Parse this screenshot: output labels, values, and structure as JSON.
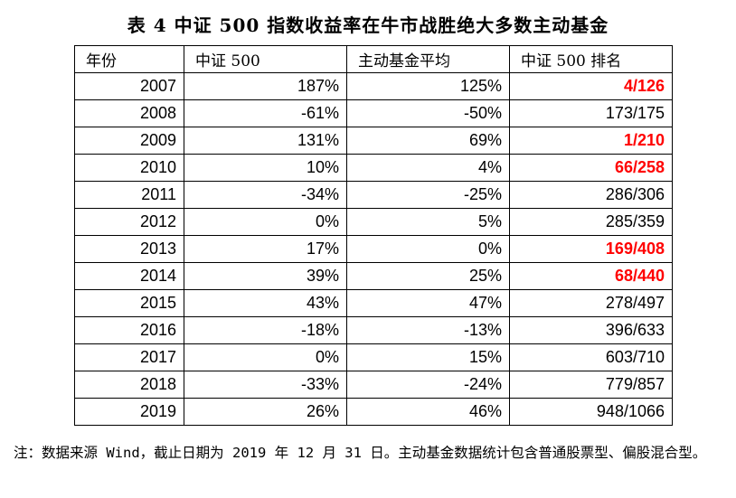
{
  "title": "表 4  中证 500 指数收益率在牛市战胜绝大多数主动基金",
  "table": {
    "headers": [
      "年份",
      "中证 500",
      "主动基金平均",
      "中证 500 排名"
    ],
    "rows": [
      {
        "year": "2007",
        "csi500": "187%",
        "fund_avg": "125%",
        "rank": "4/126",
        "highlight": true
      },
      {
        "year": "2008",
        "csi500": "-61%",
        "fund_avg": "-50%",
        "rank": "173/175",
        "highlight": false
      },
      {
        "year": "2009",
        "csi500": "131%",
        "fund_avg": "69%",
        "rank": "1/210",
        "highlight": true
      },
      {
        "year": "2010",
        "csi500": "10%",
        "fund_avg": "4%",
        "rank": "66/258",
        "highlight": true
      },
      {
        "year": "2011",
        "csi500": "-34%",
        "fund_avg": "-25%",
        "rank": "286/306",
        "highlight": false
      },
      {
        "year": "2012",
        "csi500": "0%",
        "fund_avg": "5%",
        "rank": "285/359",
        "highlight": false
      },
      {
        "year": "2013",
        "csi500": "17%",
        "fund_avg": "0%",
        "rank": "169/408",
        "highlight": true
      },
      {
        "year": "2014",
        "csi500": "39%",
        "fund_avg": "25%",
        "rank": "68/440",
        "highlight": true
      },
      {
        "year": "2015",
        "csi500": "43%",
        "fund_avg": "47%",
        "rank": "278/497",
        "highlight": false
      },
      {
        "year": "2016",
        "csi500": "-18%",
        "fund_avg": "-13%",
        "rank": "396/633",
        "highlight": false
      },
      {
        "year": "2017",
        "csi500": "0%",
        "fund_avg": "15%",
        "rank": "603/710",
        "highlight": false
      },
      {
        "year": "2018",
        "csi500": "-33%",
        "fund_avg": "-24%",
        "rank": "779/857",
        "highlight": false
      },
      {
        "year": "2019",
        "csi500": "26%",
        "fund_avg": "46%",
        "rank": "948/1066",
        "highlight": false
      }
    ]
  },
  "note": "注：数据来源 Wind，截止日期为 2019 年 12 月 31 日。主动基金数据统计包含普通股票型、偏股混合型。",
  "colors": {
    "highlight": "#ff0000"
  }
}
